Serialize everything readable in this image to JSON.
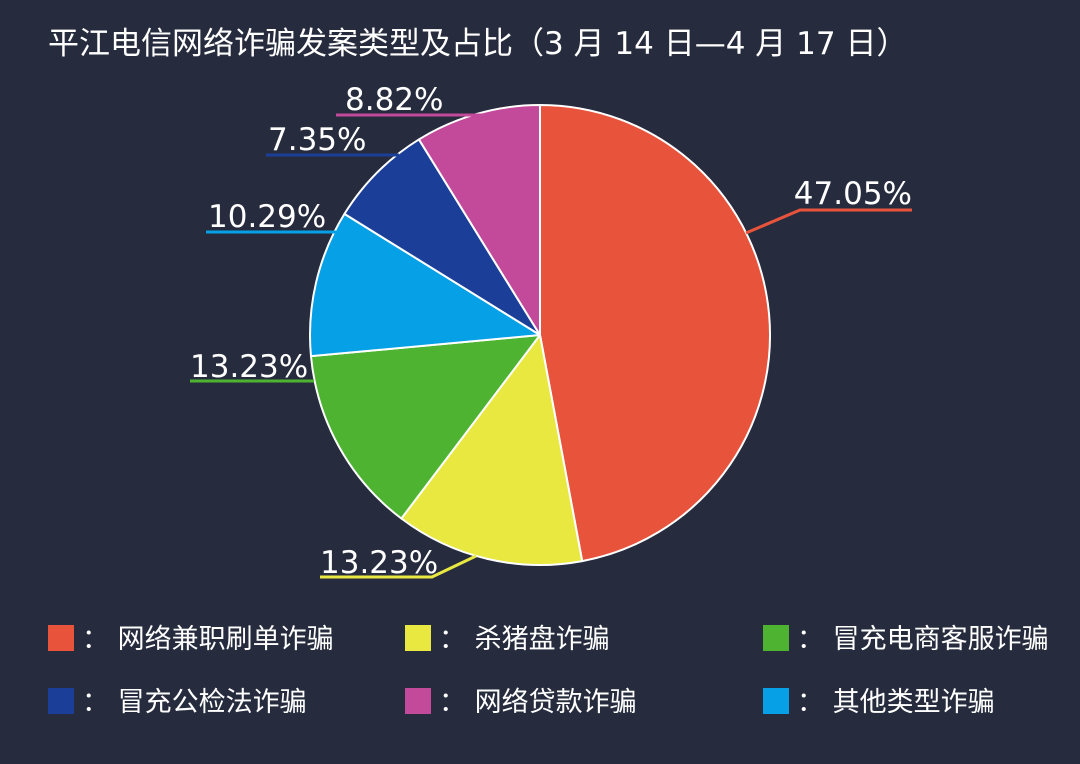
{
  "chart_data": {
    "type": "pie",
    "title": "平江电信网络诈骗发案类型及占比（3 月 14 日—4 月 17 日）",
    "legend_position": "bottom",
    "slices": [
      {
        "name": "网络兼职刷单诈骗",
        "value": 47.05,
        "label": "47.05%",
        "color": "#e8533b"
      },
      {
        "name": "杀猪盘诈骗",
        "value": 13.23,
        "label": "13.23%",
        "color": "#e9e840"
      },
      {
        "name": "冒充电商客服诈骗",
        "value": 13.23,
        "label": "13.23%",
        "color": "#4db331"
      },
      {
        "name": "其他类型诈骗",
        "value": 10.29,
        "label": "10.29%",
        "color": "#06a0e6"
      },
      {
        "name": "冒充公检法诈骗",
        "value": 7.35,
        "label": "7.35%",
        "color": "#1b3f98"
      },
      {
        "name": "网络贷款诈骗",
        "value": 8.82,
        "label": "8.82%",
        "color": "#c3499a"
      }
    ],
    "legend_order": [
      0,
      1,
      2,
      4,
      5,
      3
    ],
    "legend_separator": "："
  }
}
